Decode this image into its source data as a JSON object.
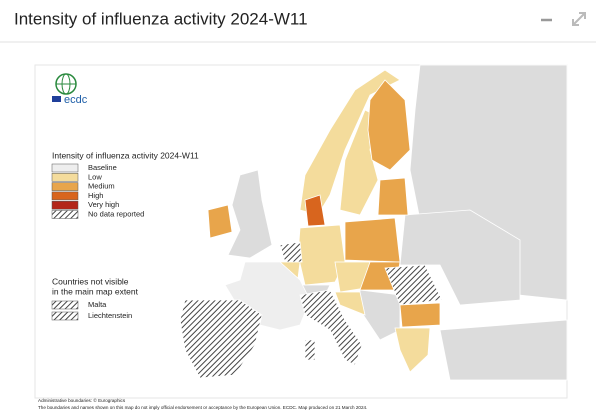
{
  "header": {
    "title": "Intensity of influenza activity 2024-W11"
  },
  "logo": {
    "text": "ecdc"
  },
  "legend": {
    "title": "Intensity of influenza activity 2024-W11",
    "items": [
      {
        "label": "Baseline",
        "color": "#eeeeee"
      },
      {
        "label": "Low",
        "color": "#f4dc9c"
      },
      {
        "label": "Medium",
        "color": "#e8a54b"
      },
      {
        "label": "High",
        "color": "#d8651e"
      },
      {
        "label": "Very high",
        "color": "#b3261a"
      },
      {
        "label": "No data reported",
        "color": "#444444",
        "hatched": true
      }
    ]
  },
  "inset": {
    "title_lines": [
      "Countries not visible",
      "in the main map extent"
    ],
    "items": [
      "Malta",
      "Liechtenstein"
    ]
  },
  "footer": [
    "Administrative boundaries: © Eurographics",
    "The boundaries and names shown on this map do not imply official endorsement or acceptance by the European Union. ECDC. Map produced on 21 March 2024."
  ]
}
